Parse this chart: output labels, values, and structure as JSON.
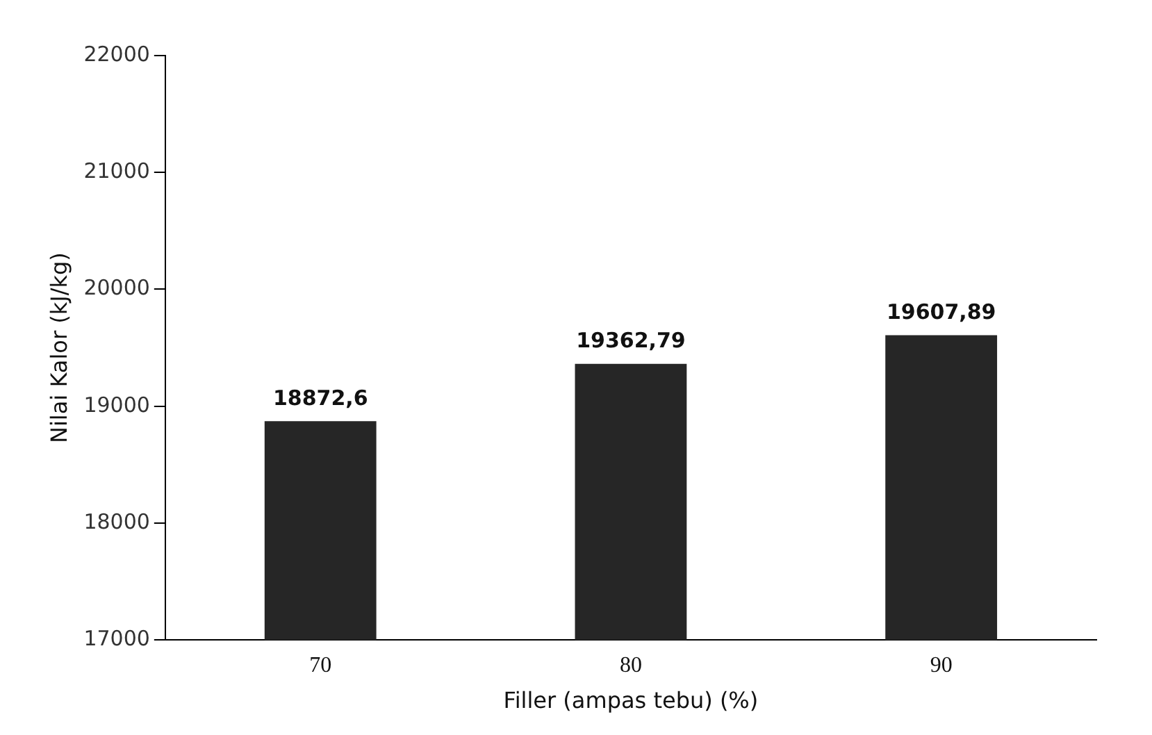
{
  "chart_data": {
    "type": "bar",
    "xlabel": "Filler (ampas tebu) (%)",
    "ylabel": "Nilai Kalor (kJ/kg)",
    "categories": [
      "70",
      "80",
      "90"
    ],
    "values": [
      18872.6,
      19362.79,
      19607.89
    ],
    "color": "#262626",
    "value_labels": [
      "18872,6",
      "19362,79",
      "19607,89"
    ],
    "ylim": [
      17000,
      22000
    ],
    "yticks": [
      17000,
      18000,
      19000,
      20000,
      21000,
      22000
    ],
    "grid": false,
    "legend": false
  }
}
